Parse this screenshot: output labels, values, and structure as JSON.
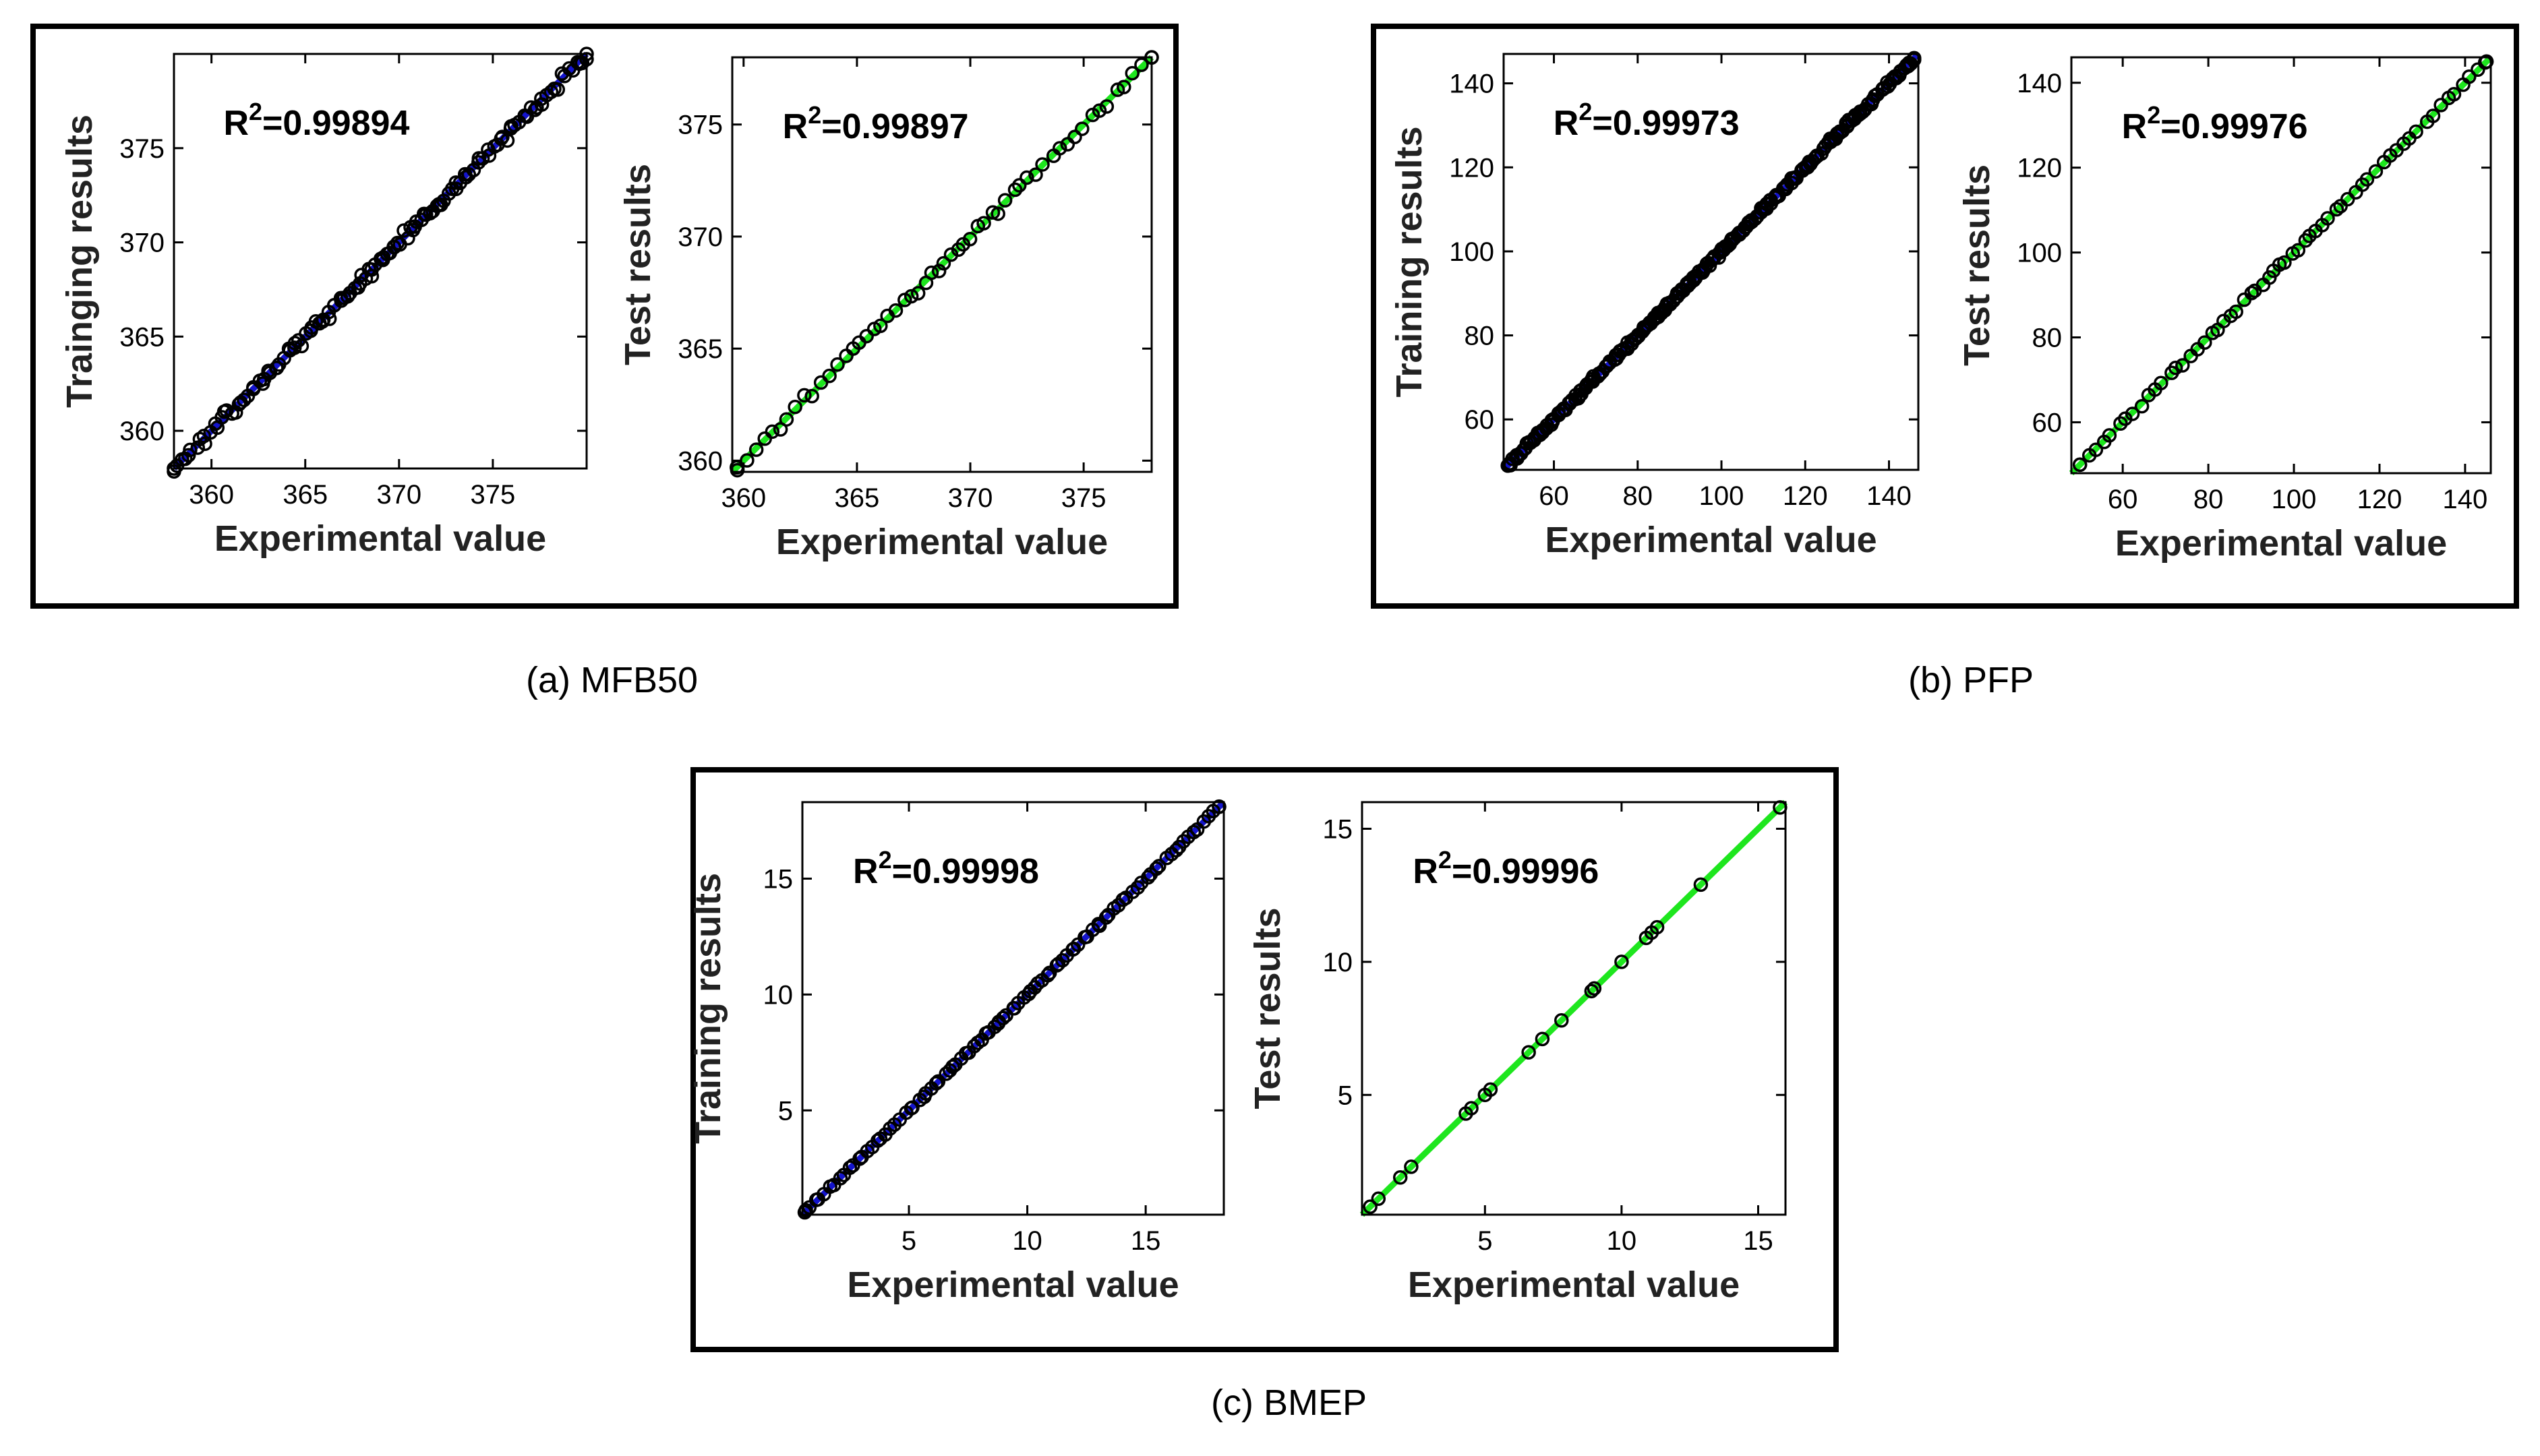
{
  "figure": {
    "panels": [
      {
        "id": "a",
        "caption": "(a) MFB50"
      },
      {
        "id": "b",
        "caption": "(b) PFP"
      },
      {
        "id": "c",
        "caption": "(c) BMEP"
      }
    ]
  },
  "colors": {
    "training_line": "#1414cc",
    "test_line": "#1ee61e",
    "marker": "#000000",
    "frame": "#000000"
  },
  "chart_data": [
    {
      "id": "a_train",
      "panel": "a",
      "type": "scatter",
      "title": "",
      "xlabel": "Experimental value",
      "ylabel": "Trainging results",
      "r2_prefix": "R",
      "r2_exp": "2",
      "r2_value": "=0.99894",
      "xlim": [
        358,
        380
      ],
      "ylim": [
        358,
        380
      ],
      "xticks": [
        360,
        365,
        370,
        375
      ],
      "yticks": [
        360,
        365,
        370,
        375
      ],
      "fit_line": {
        "from": [
          358,
          358
        ],
        "to": [
          380,
          380
        ],
        "color": "blue"
      },
      "points": {
        "min": 358,
        "max": 380,
        "count": 130,
        "noise": 0.25
      }
    },
    {
      "id": "a_test",
      "panel": "a",
      "type": "scatter",
      "title": "",
      "xlabel": "Experimental value",
      "ylabel": "Test results",
      "r2_prefix": "R",
      "r2_exp": "2",
      "r2_value": "=0.99897",
      "xlim": [
        359.5,
        378
      ],
      "ylim": [
        359.5,
        378
      ],
      "xticks": [
        360,
        365,
        370,
        375
      ],
      "yticks": [
        360,
        365,
        370,
        375
      ],
      "fit_line": {
        "from": [
          359.5,
          359.5
        ],
        "to": [
          378,
          378
        ],
        "color": "green"
      },
      "points": {
        "min": 359.7,
        "max": 378,
        "count": 55,
        "noise": 0.2
      }
    },
    {
      "id": "b_train",
      "panel": "b",
      "type": "scatter",
      "title": "",
      "xlabel": "Experimental value",
      "ylabel": "Training results",
      "r2_prefix": "R",
      "r2_exp": "2",
      "r2_value": "=0.99973",
      "xlim": [
        48,
        147
      ],
      "ylim": [
        48,
        147
      ],
      "xticks": [
        60,
        80,
        100,
        120,
        140
      ],
      "yticks": [
        60,
        80,
        100,
        120,
        140
      ],
      "fit_line": {
        "from": [
          48,
          48
        ],
        "to": [
          147,
          147
        ],
        "color": "blue"
      },
      "points": {
        "min": 49,
        "max": 146,
        "count": 260,
        "noise": 0.6
      }
    },
    {
      "id": "b_test",
      "panel": "b",
      "type": "scatter",
      "title": "",
      "xlabel": "Experimental value",
      "ylabel": "Test results",
      "r2_prefix": "R",
      "r2_exp": "2",
      "r2_value": "=0.99976",
      "xlim": [
        48,
        146
      ],
      "ylim": [
        48,
        146
      ],
      "xticks": [
        60,
        80,
        100,
        120,
        140
      ],
      "yticks": [
        60,
        80,
        100,
        120,
        140
      ],
      "fit_line": {
        "from": [
          48,
          48
        ],
        "to": [
          146,
          146
        ],
        "color": "green"
      },
      "points": {
        "min": 50,
        "max": 145,
        "count": 60,
        "noise": 0.5
      }
    },
    {
      "id": "c_train",
      "panel": "c",
      "type": "scatter",
      "title": "",
      "xlabel": "Experimental value",
      "ylabel": "Training results",
      "r2_prefix": "R",
      "r2_exp": "2",
      "r2_value": "=0.99998",
      "xlim": [
        0.5,
        18.3
      ],
      "ylim": [
        0.5,
        18.3
      ],
      "xticks": [
        5,
        10,
        15
      ],
      "yticks": [
        5,
        10,
        15
      ],
      "fit_line": {
        "from": [
          0.5,
          0.5
        ],
        "to": [
          18.3,
          18.3
        ],
        "color": "blue"
      },
      "points": {
        "min": 0.6,
        "max": 18.1,
        "count": 95,
        "noise": 0.05
      }
    },
    {
      "id": "c_test",
      "panel": "c",
      "type": "scatter",
      "title": "",
      "xlabel": "Experimental value",
      "ylabel": "Test results",
      "r2_prefix": "R",
      "r2_exp": "2",
      "r2_value": "=0.99996",
      "xlim": [
        0.5,
        16
      ],
      "ylim": [
        0.5,
        16
      ],
      "xticks": [
        5,
        10,
        15
      ],
      "yticks": [
        5,
        10,
        15
      ],
      "fit_line": {
        "from": [
          0.5,
          0.5
        ],
        "to": [
          16,
          16
        ],
        "color": "green"
      },
      "points": {
        "values": [
          [
            0.8,
            0.8
          ],
          [
            1.1,
            1.1
          ],
          [
            1.9,
            1.9
          ],
          [
            2.3,
            2.3
          ],
          [
            4.3,
            4.3
          ],
          [
            4.5,
            4.5
          ],
          [
            5.0,
            5.0
          ],
          [
            5.2,
            5.2
          ],
          [
            6.6,
            6.6
          ],
          [
            7.1,
            7.1
          ],
          [
            7.8,
            7.8
          ],
          [
            8.9,
            8.9
          ],
          [
            9.0,
            9.0
          ],
          [
            10.0,
            10.0
          ],
          [
            10.9,
            10.9
          ],
          [
            11.1,
            11.1
          ],
          [
            11.3,
            11.3
          ],
          [
            12.9,
            12.9
          ],
          [
            15.8,
            15.8
          ]
        ]
      }
    }
  ]
}
